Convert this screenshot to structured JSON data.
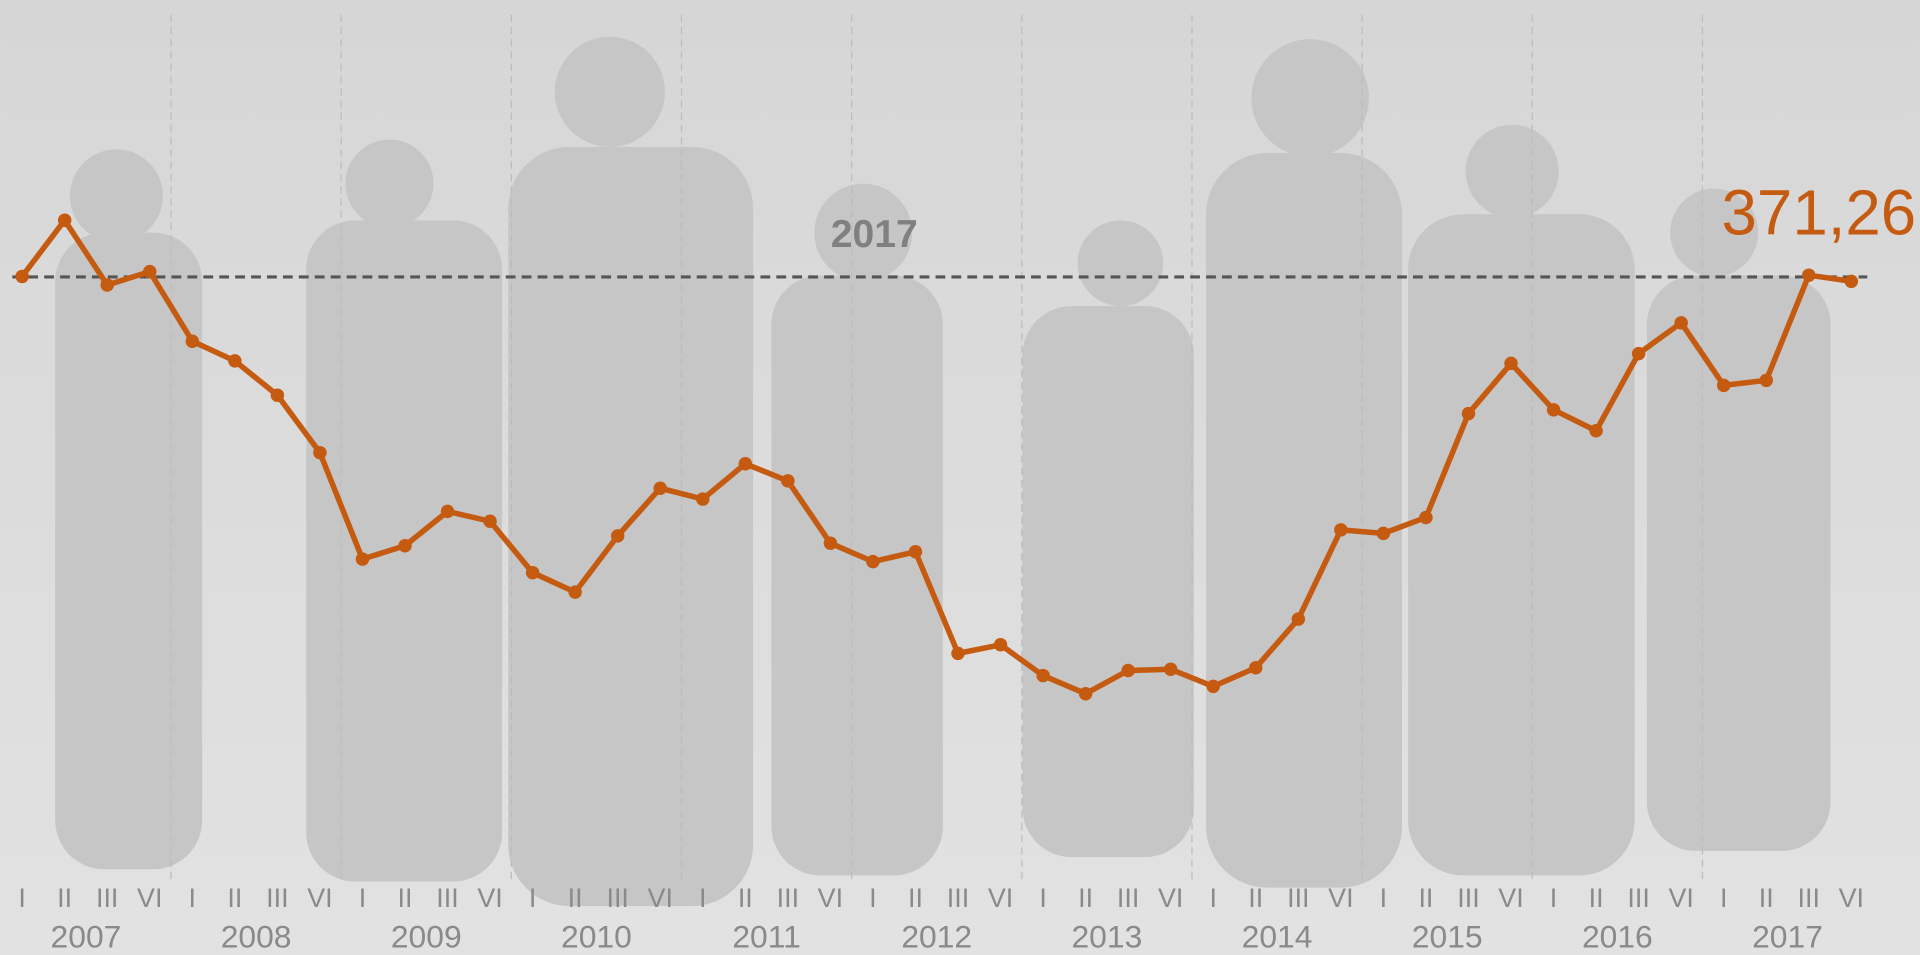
{
  "chart_data": {
    "type": "line",
    "x_groups": [
      "2007",
      "2008",
      "2009",
      "2010",
      "2011",
      "2012",
      "2013",
      "2014",
      "2015",
      "2016",
      "2017"
    ],
    "categories": [
      "I",
      "II",
      "III",
      "VI",
      "I",
      "II",
      "III",
      "VI",
      "I",
      "II",
      "III",
      "VI",
      "I",
      "II",
      "III",
      "VI",
      "I",
      "II",
      "III",
      "VI",
      "I",
      "II",
      "III",
      "VI",
      "I",
      "II",
      "III",
      "VI",
      "I",
      "II",
      "III",
      "VI",
      "I",
      "II",
      "III",
      "VI",
      "I",
      "II",
      "III",
      "VI",
      "I",
      "II",
      "III",
      "VI"
    ],
    "series": [
      {
        "color": "#c55a11",
        "values": [
          373.2,
          395.5,
          369.8,
          375.1,
          347.5,
          339.7,
          326.1,
          303.3,
          261.1,
          266.4,
          280.0,
          276.1,
          255.7,
          248.0,
          270.3,
          289.2,
          284.9,
          298.9,
          292.1,
          267.4,
          260.1,
          264.0,
          223.7,
          227.1,
          214.9,
          207.7,
          216.9,
          217.4,
          210.6,
          218.0,
          237.3,
          272.7,
          271.3,
          277.6,
          318.8,
          338.7,
          320.3,
          312.0,
          342.6,
          354.8,
          330.0,
          332.0,
          373.7,
          371.26
        ],
        "value_labels": [
          null,
          null,
          null,
          null,
          null,
          null,
          null,
          null,
          null,
          null,
          null,
          null,
          null,
          null,
          null,
          null,
          null,
          null,
          null,
          null,
          null,
          null,
          null,
          null,
          null,
          null,
          null,
          null,
          null,
          null,
          null,
          null,
          null,
          null,
          null,
          null,
          null,
          null,
          null,
          null,
          null,
          null,
          null,
          "371,26"
        ]
      }
    ],
    "reference_line": {
      "value": 373,
      "label": "2017",
      "color": "#555555"
    },
    "ylim": [
      140,
      410
    ]
  }
}
